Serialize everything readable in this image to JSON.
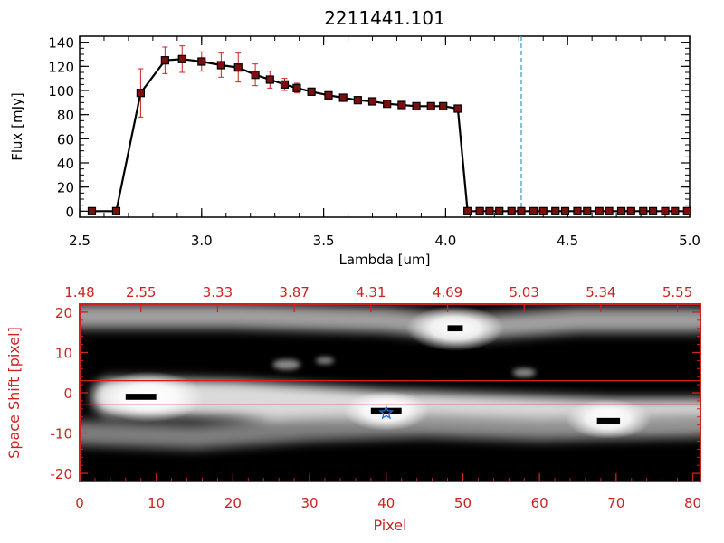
{
  "colors": {
    "background": "#ffffff",
    "axis": "#000000",
    "accent": "#cc2222",
    "marker_fill": "#7a0f0f",
    "vline": "#3399cc",
    "image_dark": "#000000",
    "image_light": "#ffffff",
    "star": "#2a6fd6"
  },
  "chart_data": [
    {
      "type": "line",
      "title": "2211441.101",
      "xlabel": "Lambda [um]",
      "ylabel": "Flux [mJy]",
      "xlim": [
        2.5,
        5.0
      ],
      "ylim": [
        -5,
        145
      ],
      "xticks": [
        2.5,
        3.0,
        3.5,
        4.0,
        4.5,
        5.0
      ],
      "xtick_labels": [
        "2.5",
        "3.0",
        "3.5",
        "4.0",
        "4.5",
        "5.0"
      ],
      "yticks": [
        0,
        20,
        40,
        60,
        80,
        100,
        120,
        140
      ],
      "ytick_labels": [
        "0",
        "20",
        "40",
        "60",
        "80",
        "100",
        "120",
        "140"
      ],
      "vline_x": 4.31,
      "x": [
        2.55,
        2.65,
        2.75,
        2.85,
        2.92,
        3.0,
        3.08,
        3.15,
        3.22,
        3.28,
        3.34,
        3.39,
        3.45,
        3.52,
        3.58,
        3.64,
        3.7,
        3.76,
        3.82,
        3.88,
        3.94,
        3.99,
        4.05,
        4.09,
        4.14,
        4.18,
        4.22,
        4.27,
        4.31,
        4.36,
        4.4,
        4.45,
        4.49,
        4.54,
        4.58,
        4.63,
        4.67,
        4.72,
        4.76,
        4.81,
        4.85,
        4.9,
        4.94,
        4.99
      ],
      "y": [
        0,
        0,
        98,
        125,
        126,
        124,
        121,
        119,
        113,
        109,
        105,
        102,
        99,
        96,
        94,
        92,
        91,
        89,
        88,
        87,
        87,
        87,
        85,
        0,
        0,
        0,
        0,
        0,
        0,
        0,
        0,
        0,
        0,
        0,
        0,
        0,
        0,
        0,
        0,
        0,
        0,
        0,
        0,
        0
      ],
      "yerr": [
        0,
        0,
        20,
        11,
        11,
        8,
        10,
        12,
        9,
        7,
        5,
        4,
        3,
        2,
        2,
        2,
        2,
        2,
        2,
        1,
        1,
        1,
        1,
        0,
        0,
        0,
        0,
        0,
        0,
        0,
        0,
        0,
        0,
        0,
        0,
        0,
        0,
        0,
        0,
        0,
        0,
        0,
        0,
        0
      ]
    },
    {
      "type": "heatmap",
      "xlabel": "Pixel",
      "ylabel": "Space Shift [pixel]",
      "xlim": [
        0,
        81
      ],
      "ylim": [
        -22,
        22
      ],
      "xticks": [
        0,
        10,
        20,
        30,
        40,
        50,
        60,
        70,
        80
      ],
      "xtick_labels": [
        "0",
        "10",
        "20",
        "30",
        "40",
        "50",
        "60",
        "70",
        "80"
      ],
      "yticks": [
        -20,
        -10,
        0,
        10,
        20
      ],
      "ytick_labels": [
        "-20",
        "-10",
        "0",
        "10",
        "20"
      ],
      "top_ticks": [
        0,
        8,
        18,
        28,
        38,
        48,
        58,
        68,
        78
      ],
      "top_tick_labels": [
        "1.48",
        "2.55",
        "3.33",
        "3.87",
        "4.31",
        "4.69",
        "5.03",
        "5.34",
        "5.55"
      ],
      "extraction_lines": [
        3,
        -3
      ],
      "star": {
        "x": 40,
        "y": -5
      },
      "sources": [
        {
          "points": [
            [
              4,
              -1
            ],
            [
              9,
              -1
            ],
            [
              20,
              -1.5
            ],
            [
              40,
              -4
            ],
            [
              55,
              -5
            ],
            [
              70,
              -6
            ],
            [
              81,
              -6
            ]
          ],
          "brightness": 0.95,
          "width": 4.5
        },
        {
          "points": [
            [
              0,
              -10
            ],
            [
              15,
              -11
            ],
            [
              30,
              -9
            ],
            [
              45,
              -8
            ],
            [
              60,
              -9
            ],
            [
              81,
              -8
            ]
          ],
          "brightness": 0.55,
          "width": 3
        },
        {
          "points": [
            [
              0,
              19
            ],
            [
              20,
              19
            ],
            [
              40,
              18
            ],
            [
              50,
              16
            ],
            [
              65,
              18
            ],
            [
              81,
              18
            ]
          ],
          "brightness": 0.7,
          "width": 3
        }
      ],
      "peaks": [
        {
          "x": 9,
          "y": -1,
          "r": 4.5
        },
        {
          "x": 40,
          "y": -4.5,
          "r": 3.5
        },
        {
          "x": 49,
          "y": 16,
          "r": 4
        },
        {
          "x": 69,
          "y": -6.5,
          "r": 3.5
        }
      ],
      "blobs": [
        {
          "x": 27,
          "y": 7,
          "r": 1.8
        },
        {
          "x": 58,
          "y": 5,
          "r": 1.5
        },
        {
          "x": 32,
          "y": 8,
          "r": 1.2
        }
      ],
      "saturated": [
        {
          "x": 8,
          "y": -1,
          "w": 4,
          "h": 1.5
        },
        {
          "x": 40,
          "y": -4.5,
          "w": 4,
          "h": 1.5
        },
        {
          "x": 49,
          "y": 16,
          "w": 2,
          "h": 1.5
        },
        {
          "x": 69,
          "y": -7,
          "w": 3,
          "h": 1.5
        }
      ]
    }
  ]
}
